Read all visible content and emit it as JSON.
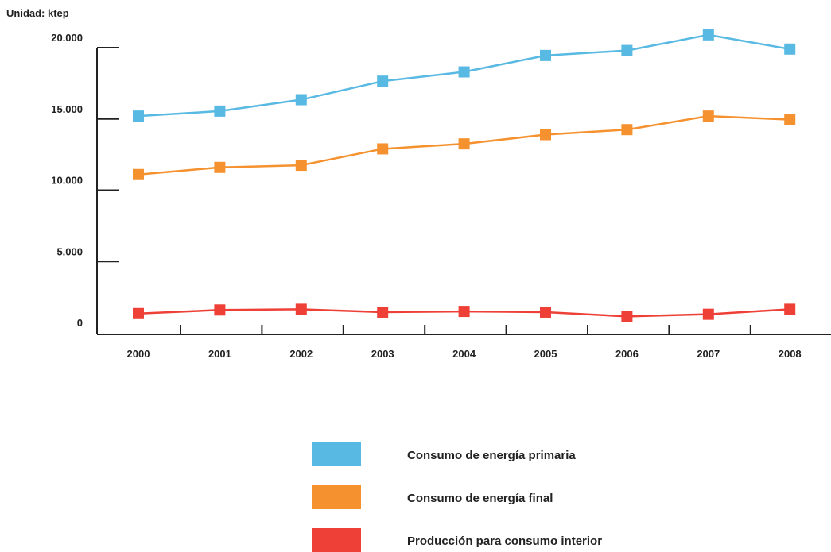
{
  "chart_data": {
    "type": "line",
    "unit_label": "Unidad: ktep",
    "categories": [
      "2000",
      "2001",
      "2002",
      "2003",
      "2004",
      "2005",
      "2006",
      "2007",
      "2008"
    ],
    "y_ticks": [
      "0",
      "5.000",
      "10.000",
      "15.000",
      "20.000"
    ],
    "y_tick_values": [
      0,
      5000,
      10000,
      15000,
      20000
    ],
    "ylim": [
      0,
      20000
    ],
    "grid": false,
    "legend_position": "bottom-center",
    "series": [
      {
        "name": "Consumo de energía primaria",
        "color": "#58b9e2",
        "values": [
          15200,
          15550,
          16350,
          17650,
          18300,
          19450,
          19800,
          20900,
          19900
        ]
      },
      {
        "name": "Consumo de energía final",
        "color": "#f5922f",
        "values": [
          11100,
          11600,
          11750,
          12900,
          13250,
          13900,
          14250,
          15200,
          14950
        ]
      },
      {
        "name": "Producción para consumo interior",
        "color": "#ee4036",
        "values": [
          1350,
          1600,
          1650,
          1450,
          1500,
          1450,
          1150,
          1300,
          1650
        ]
      }
    ]
  }
}
